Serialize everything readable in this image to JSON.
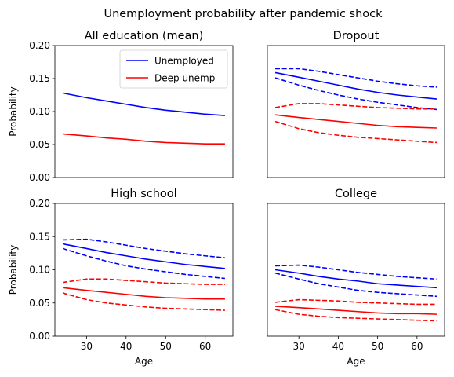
{
  "figure": {
    "suptitle": "Unemployment probability after pandemic shock"
  },
  "legend": {
    "items": [
      {
        "label": "Unemployed",
        "color": "#0000ff"
      },
      {
        "label": "Deep unemp",
        "color": "#ff0000"
      }
    ]
  },
  "chart_data": [
    {
      "type": "line",
      "title": "All education (mean)",
      "xlabel": "",
      "ylabel": "Probability",
      "xlim": [
        22,
        67
      ],
      "ylim": [
        0,
        0.2
      ],
      "yticks": [
        0.0,
        0.05,
        0.1,
        0.15,
        0.2
      ],
      "ytick_labels": [
        "0.00",
        "0.05",
        "0.10",
        "0.15",
        "0.20"
      ],
      "xticks": [],
      "legend": "upper-right",
      "series": [
        {
          "name": "Unemployed",
          "color": "#0000ff",
          "style": "solid",
          "x": [
            24,
            30,
            35,
            40,
            45,
            50,
            55,
            60,
            65
          ],
          "y": [
            0.128,
            0.121,
            0.116,
            0.111,
            0.106,
            0.102,
            0.099,
            0.096,
            0.094
          ]
        },
        {
          "name": "Deep unemp",
          "color": "#ff0000",
          "style": "solid",
          "x": [
            24,
            30,
            35,
            40,
            45,
            50,
            55,
            60,
            65
          ],
          "y": [
            0.066,
            0.063,
            0.06,
            0.058,
            0.055,
            0.053,
            0.052,
            0.051,
            0.051
          ]
        }
      ]
    },
    {
      "type": "line",
      "title": "Dropout",
      "xlabel": "",
      "ylabel": "",
      "xlim": [
        22,
        67
      ],
      "ylim": [
        0,
        0.2
      ],
      "yticks": [],
      "ytick_labels": [],
      "xticks": [],
      "series": [
        {
          "color": "#0000ff",
          "style": "solid",
          "x": [
            24,
            30,
            35,
            40,
            45,
            50,
            55,
            60,
            65
          ],
          "y": [
            0.159,
            0.152,
            0.146,
            0.14,
            0.134,
            0.129,
            0.125,
            0.122,
            0.119
          ]
        },
        {
          "color": "#0000ff",
          "style": "dashed",
          "x": [
            24,
            30,
            35,
            40,
            45,
            50,
            55,
            60,
            65
          ],
          "y": [
            0.165,
            0.165,
            0.161,
            0.156,
            0.151,
            0.146,
            0.142,
            0.139,
            0.137
          ]
        },
        {
          "color": "#0000ff",
          "style": "dashed",
          "x": [
            24,
            30,
            35,
            40,
            45,
            50,
            55,
            60,
            65
          ],
          "y": [
            0.151,
            0.14,
            0.132,
            0.125,
            0.119,
            0.114,
            0.11,
            0.106,
            0.103
          ]
        },
        {
          "color": "#ff0000",
          "style": "solid",
          "x": [
            24,
            30,
            35,
            40,
            45,
            50,
            55,
            60,
            65
          ],
          "y": [
            0.095,
            0.091,
            0.088,
            0.085,
            0.082,
            0.079,
            0.077,
            0.076,
            0.075
          ]
        },
        {
          "color": "#ff0000",
          "style": "dashed",
          "x": [
            24,
            30,
            35,
            40,
            45,
            50,
            55,
            60,
            65
          ],
          "y": [
            0.106,
            0.112,
            0.112,
            0.11,
            0.108,
            0.106,
            0.105,
            0.104,
            0.104
          ]
        },
        {
          "color": "#ff0000",
          "style": "dashed",
          "x": [
            24,
            30,
            35,
            40,
            45,
            50,
            55,
            60,
            65
          ],
          "y": [
            0.085,
            0.074,
            0.068,
            0.064,
            0.061,
            0.059,
            0.057,
            0.055,
            0.053
          ]
        }
      ]
    },
    {
      "type": "line",
      "title": "High school",
      "xlabel": "Age",
      "ylabel": "Probability",
      "xlim": [
        22,
        67
      ],
      "ylim": [
        0,
        0.2
      ],
      "yticks": [
        0.0,
        0.05,
        0.1,
        0.15,
        0.2
      ],
      "ytick_labels": [
        "0.00",
        "0.05",
        "0.10",
        "0.15",
        "0.20"
      ],
      "xticks": [
        30,
        40,
        50,
        60
      ],
      "xtick_labels": [
        "30",
        "40",
        "50",
        "60"
      ],
      "series": [
        {
          "color": "#0000ff",
          "style": "solid",
          "x": [
            24,
            30,
            35,
            40,
            45,
            50,
            55,
            60,
            65
          ],
          "y": [
            0.139,
            0.132,
            0.126,
            0.121,
            0.116,
            0.112,
            0.108,
            0.105,
            0.102
          ]
        },
        {
          "color": "#0000ff",
          "style": "dashed",
          "x": [
            24,
            30,
            35,
            40,
            45,
            50,
            55,
            60,
            65
          ],
          "y": [
            0.145,
            0.146,
            0.142,
            0.137,
            0.132,
            0.128,
            0.124,
            0.121,
            0.118
          ]
        },
        {
          "color": "#0000ff",
          "style": "dashed",
          "x": [
            24,
            30,
            35,
            40,
            45,
            50,
            55,
            60,
            65
          ],
          "y": [
            0.132,
            0.121,
            0.113,
            0.106,
            0.101,
            0.097,
            0.093,
            0.09,
            0.087
          ]
        },
        {
          "color": "#ff0000",
          "style": "solid",
          "x": [
            24,
            30,
            35,
            40,
            45,
            50,
            55,
            60,
            65
          ],
          "y": [
            0.073,
            0.069,
            0.066,
            0.063,
            0.06,
            0.058,
            0.057,
            0.056,
            0.056
          ]
        },
        {
          "color": "#ff0000",
          "style": "dashed",
          "x": [
            24,
            30,
            35,
            40,
            45,
            50,
            55,
            60,
            65
          ],
          "y": [
            0.081,
            0.086,
            0.086,
            0.084,
            0.082,
            0.08,
            0.079,
            0.078,
            0.078
          ]
        },
        {
          "color": "#ff0000",
          "style": "dashed",
          "x": [
            24,
            30,
            35,
            40,
            45,
            50,
            55,
            60,
            65
          ],
          "y": [
            0.065,
            0.055,
            0.05,
            0.047,
            0.044,
            0.042,
            0.041,
            0.04,
            0.039
          ]
        }
      ]
    },
    {
      "type": "line",
      "title": "College",
      "xlabel": "Age",
      "ylabel": "",
      "xlim": [
        22,
        67
      ],
      "ylim": [
        0,
        0.2
      ],
      "yticks": [],
      "ytick_labels": [],
      "xticks": [
        30,
        40,
        50,
        60
      ],
      "xtick_labels": [
        "30",
        "40",
        "50",
        "60"
      ],
      "series": [
        {
          "color": "#0000ff",
          "style": "solid",
          "x": [
            24,
            30,
            35,
            40,
            45,
            50,
            55,
            60,
            65
          ],
          "y": [
            0.1,
            0.095,
            0.09,
            0.086,
            0.083,
            0.079,
            0.077,
            0.075,
            0.073
          ]
        },
        {
          "color": "#0000ff",
          "style": "dashed",
          "x": [
            24,
            30,
            35,
            40,
            45,
            50,
            55,
            60,
            65
          ],
          "y": [
            0.106,
            0.107,
            0.104,
            0.1,
            0.096,
            0.093,
            0.09,
            0.088,
            0.086
          ]
        },
        {
          "color": "#0000ff",
          "style": "dashed",
          "x": [
            24,
            30,
            35,
            40,
            45,
            50,
            55,
            60,
            65
          ],
          "y": [
            0.095,
            0.086,
            0.079,
            0.074,
            0.069,
            0.066,
            0.064,
            0.062,
            0.06
          ]
        },
        {
          "color": "#ff0000",
          "style": "solid",
          "x": [
            24,
            30,
            35,
            40,
            45,
            50,
            55,
            60,
            65
          ],
          "y": [
            0.045,
            0.043,
            0.041,
            0.039,
            0.037,
            0.035,
            0.034,
            0.034,
            0.033
          ]
        },
        {
          "color": "#ff0000",
          "style": "dashed",
          "x": [
            24,
            30,
            35,
            40,
            45,
            50,
            55,
            60,
            65
          ],
          "y": [
            0.051,
            0.055,
            0.054,
            0.053,
            0.051,
            0.05,
            0.049,
            0.048,
            0.048
          ]
        },
        {
          "color": "#ff0000",
          "style": "dashed",
          "x": [
            24,
            30,
            35,
            40,
            45,
            50,
            55,
            60,
            65
          ],
          "y": [
            0.04,
            0.033,
            0.03,
            0.028,
            0.027,
            0.026,
            0.025,
            0.024,
            0.023
          ]
        }
      ]
    }
  ]
}
